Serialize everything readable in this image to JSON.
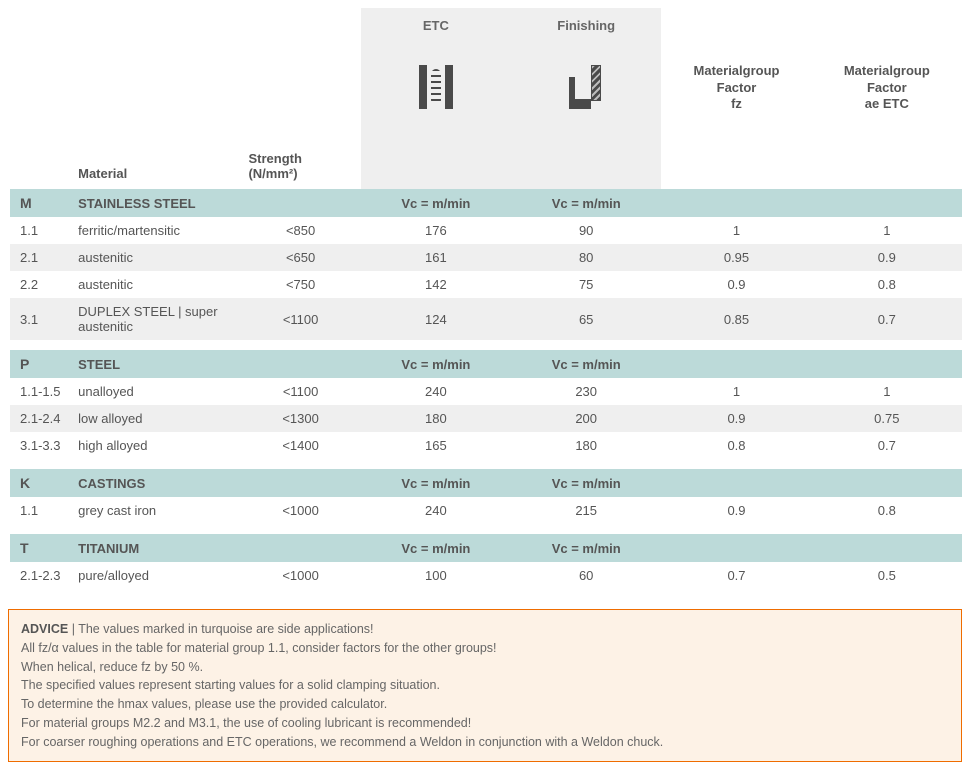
{
  "headers": {
    "material": "Material",
    "strength": "Strength (N/mm²)",
    "etc": "ETC",
    "finishing": "Finishing",
    "factor_fz": "Materialgroup Factor fz",
    "factor_ae": "Materialgroup Factor ae ETC",
    "vc_label": "Vc = m/min"
  },
  "sections": [
    {
      "code": "M",
      "title": "STAINLESS STEEL",
      "bar": "bar-m",
      "sec": "sec-m",
      "rows": [
        {
          "code": "1.1",
          "mat": "ferritic/martensitic",
          "str": "<850",
          "etc": "176",
          "fin": "90",
          "fz": "1",
          "ae": "1"
        },
        {
          "code": "2.1",
          "mat": "austenitic",
          "str": "<650",
          "etc": "161",
          "fin": "80",
          "fz": "0.95",
          "ae": "0.9"
        },
        {
          "code": "2.2",
          "mat": "austenitic",
          "str": "<750",
          "etc": "142",
          "fin": "75",
          "fz": "0.9",
          "ae": "0.8"
        },
        {
          "code": "3.1",
          "mat": "DUPLEX STEEL | super austenitic",
          "str": "<1100",
          "etc": "124",
          "fin": "65",
          "fz": "0.85",
          "ae": "0.7"
        }
      ]
    },
    {
      "code": "P",
      "title": "STEEL",
      "bar": "bar-p",
      "sec": "sec-p",
      "rows": [
        {
          "code": "1.1-1.5",
          "mat": "unalloyed",
          "str": "<1100",
          "etc": "240",
          "fin": "230",
          "fz": "1",
          "ae": "1"
        },
        {
          "code": "2.1-2.4",
          "mat": "low alloyed",
          "str": "<1300",
          "etc": "180",
          "fin": "200",
          "fz": "0.9",
          "ae": "0.75"
        },
        {
          "code": "3.1-3.3",
          "mat": "high alloyed",
          "str": "<1400",
          "etc": "165",
          "fin": "180",
          "fz": "0.8",
          "ae": "0.7"
        }
      ]
    },
    {
      "code": "K",
      "title": "CASTINGS",
      "bar": "bar-k",
      "sec": "sec-k",
      "rows": [
        {
          "code": "1.1",
          "mat": "grey cast iron",
          "str": "<1000",
          "etc": "240",
          "fin": "215",
          "fz": "0.9",
          "ae": "0.8"
        }
      ]
    },
    {
      "code": "T",
      "title": "TITANIUM",
      "bar": "bar-t",
      "sec": "sec-t",
      "rows": [
        {
          "code": "2.1-2.3",
          "mat": "pure/alloyed",
          "str": "<1000",
          "etc": "100",
          "fin": "60",
          "fz": "0.7",
          "ae": "0.5"
        }
      ]
    }
  ],
  "advice": {
    "title": "ADVICE",
    "lines": [
      "The values marked in turquoise are side applications!",
      "All fz/α values in the table for material group 1.1, consider factors for the other groups!",
      "When helical, reduce fz by 50 %.",
      "The specified values represent starting values for a solid clamping situation.",
      "To determine the hmax values, please use the provided calculator.",
      "For material groups M2.2 and M3.1, the use of cooling lubricant is recommended!",
      "For coarser roughing operations and ETC operations, we recommend a Weldon in conjunction with a Weldon chuck."
    ]
  },
  "colors": {
    "section_bg": "#bcdad9",
    "alt_row_bg": "#efefef",
    "bar_m": "#ffd400",
    "bar_p": "#1e3a8a",
    "bar_k": "#c62828",
    "bar_t": "#ef6c00",
    "advice_border": "#ef6c00",
    "advice_bg": "#fdf2e6"
  }
}
